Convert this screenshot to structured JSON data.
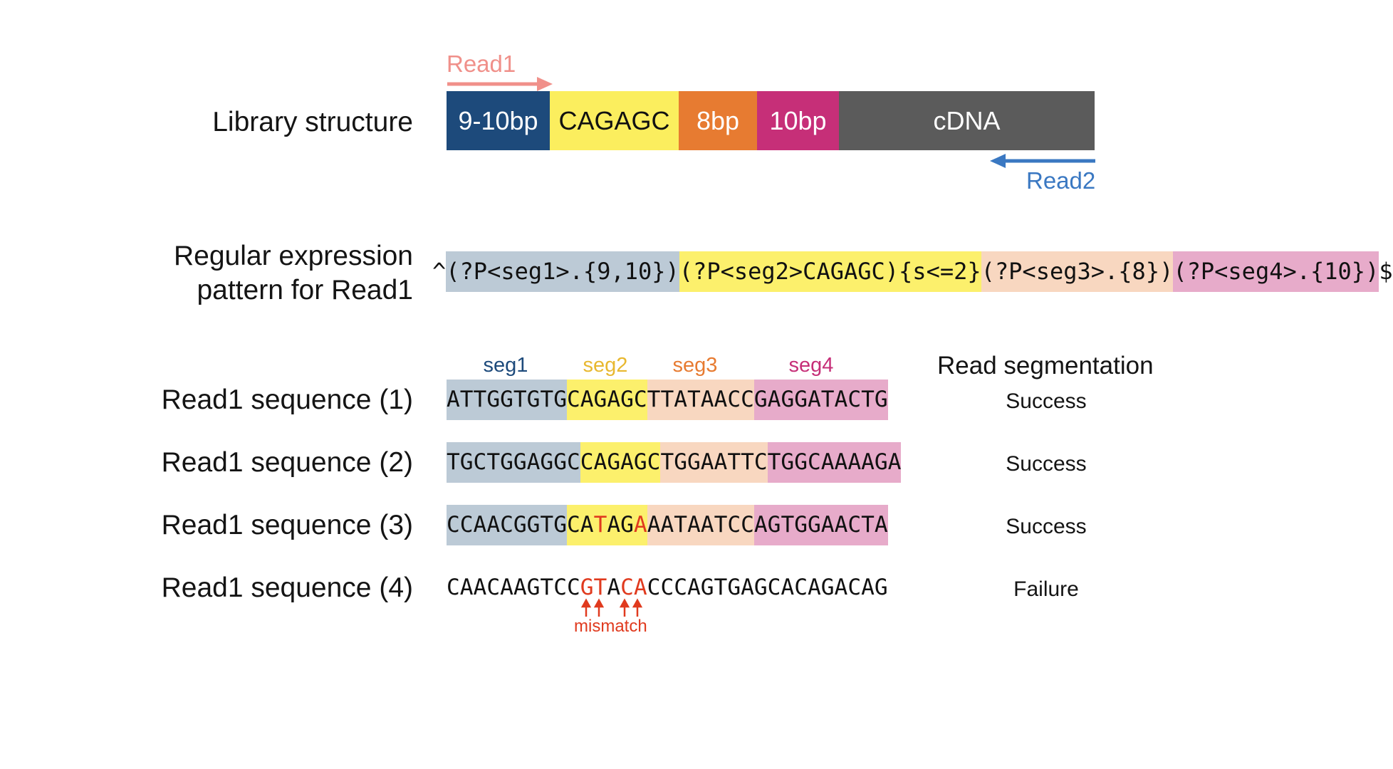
{
  "colors": {
    "seg1_bar": "#1d4a7b",
    "seg2_bar": "#fbee5e",
    "seg3_bar": "#e77b31",
    "seg4_bar": "#c62f78",
    "cdna_bar": "#5b5b5b",
    "seg1_bg": "#bccad6",
    "seg2_bg": "#fcf06c",
    "seg3_bg": "#f8d7c0",
    "seg4_bg": "#e7abca",
    "read1": "#f0908a",
    "read2": "#3a78c2",
    "mismatch": "#e03a1e"
  },
  "library": {
    "label": "Library structure",
    "read1_label": "Read1",
    "read2_label": "Read2",
    "blocks": [
      "9-10bp",
      "CAGAGC",
      "8bp",
      "10bp",
      "cDNA"
    ]
  },
  "regex": {
    "label_line1": "Regular expression",
    "label_line2": "pattern for Read1",
    "prefix": "^",
    "parts": [
      "(?P<seg1>.{9,10})",
      "(?P<seg2>CAGAGC){s<=2}",
      "(?P<seg3>.{8})",
      "(?P<seg4>.{10})"
    ],
    "suffix": "$"
  },
  "segments": {
    "headers": [
      "seg1",
      "seg2",
      "seg3",
      "seg4"
    ],
    "result_header": "Read segmentation"
  },
  "reads": [
    {
      "label": "Read1 sequence (1)",
      "seg1": "ATTGGTGTG",
      "seg2": "CAGAGC",
      "seg3": "TTATAACC",
      "seg4": "GAGGATACTG",
      "result": "Success"
    },
    {
      "label": "Read1 sequence (2)",
      "seg1": "TGCTGGAGGC",
      "seg2": "CAGAGC",
      "seg3": "TGGAATTC",
      "seg4": "TGGCAAAAGA",
      "result": "Success"
    },
    {
      "label": "Read1 sequence (3)",
      "seg1": "CCAACGGTG",
      "seg2": [
        "CA",
        "T",
        "AG",
        "A"
      ],
      "seg3": "AATAATCC",
      "seg4": "AGTGGAACTA",
      "result": "Success"
    },
    {
      "label": "Read1 sequence (4)",
      "parts": [
        "CAACAAGTCC",
        "GT",
        "A",
        "CA",
        "CCCAGTGAGCACAGACAG"
      ],
      "result": "Failure",
      "mismatch_label": "mismatch"
    }
  ]
}
